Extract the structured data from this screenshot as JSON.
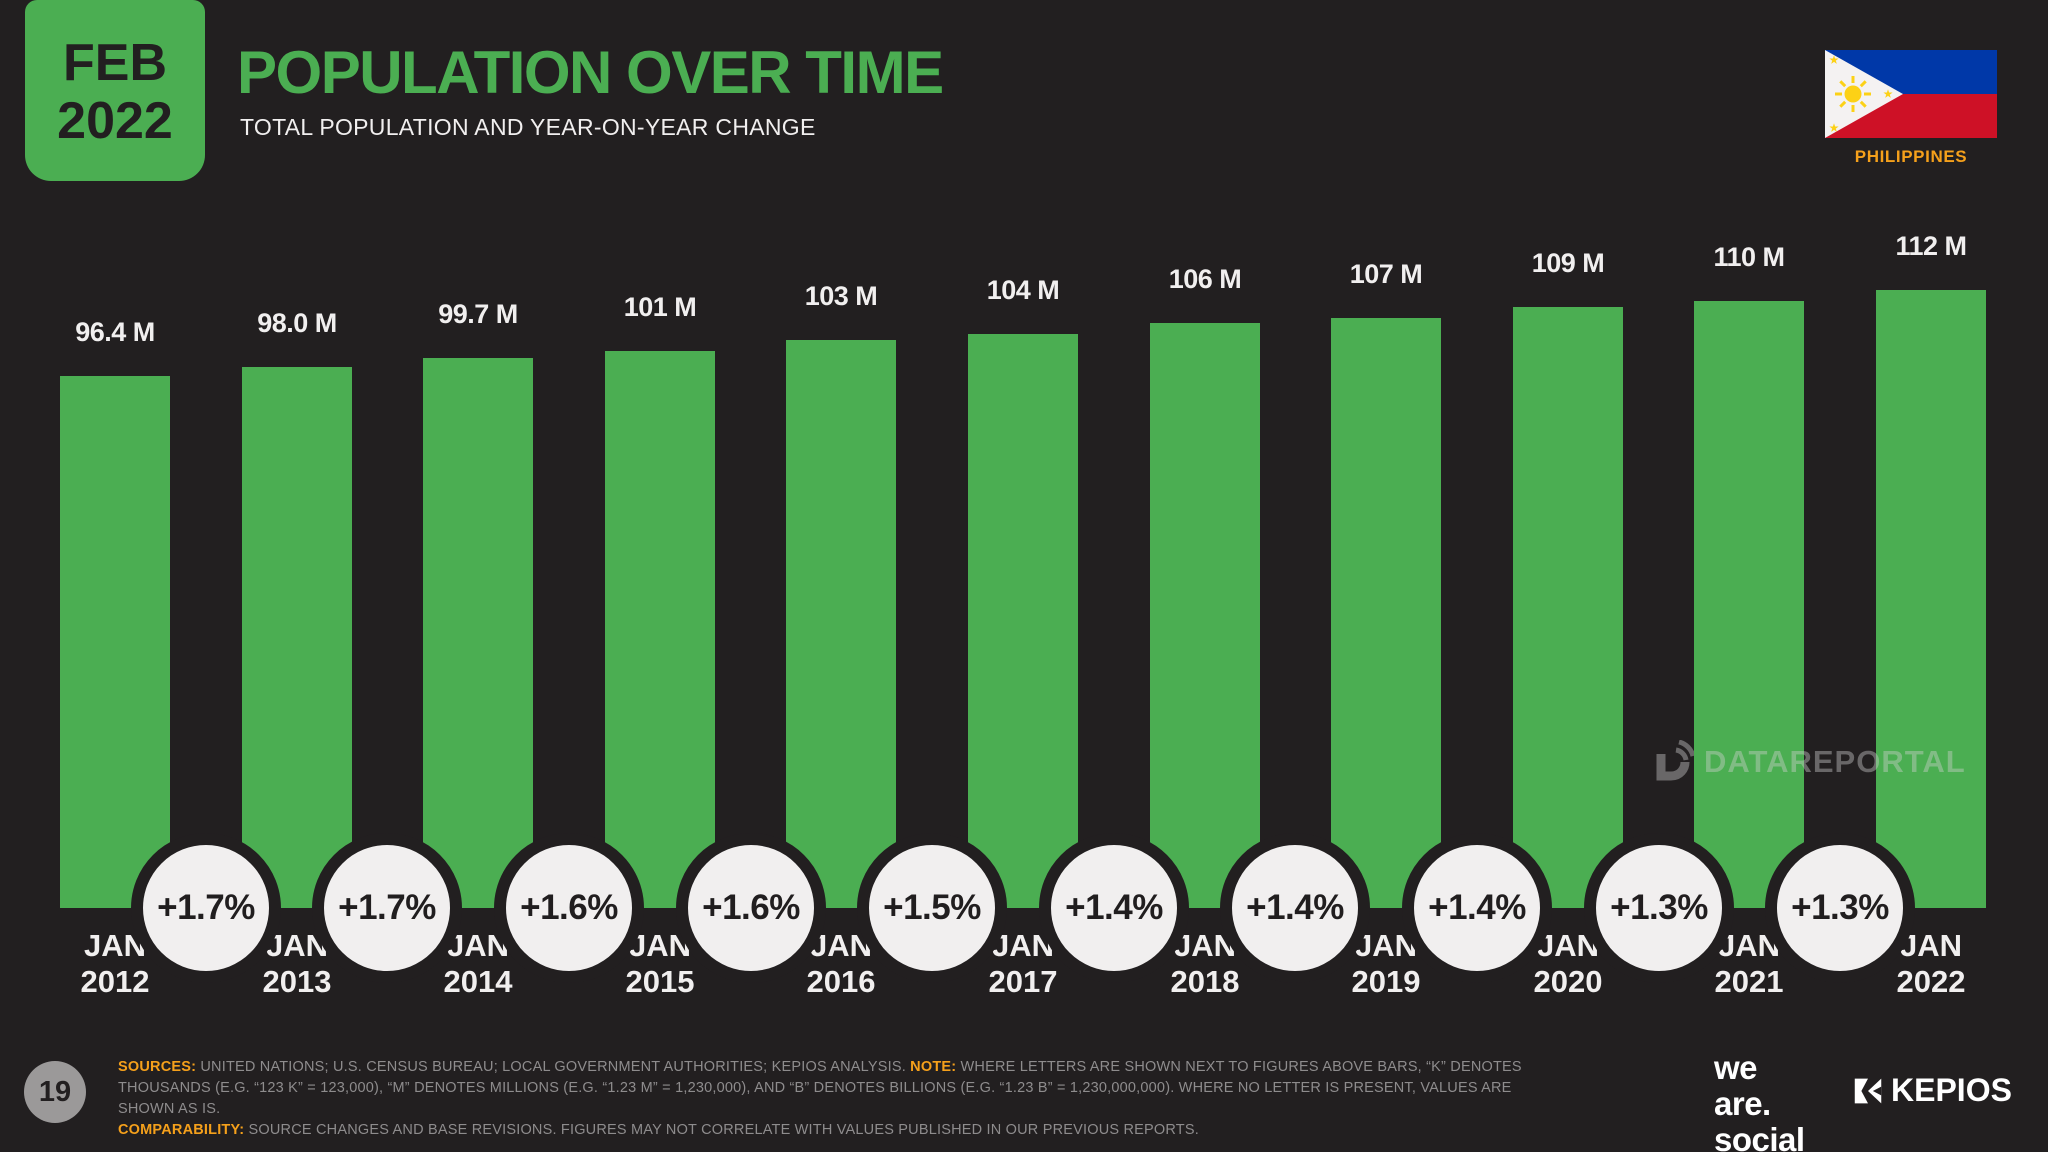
{
  "slide": {
    "date_badge": {
      "month": "FEB",
      "year": "2022"
    },
    "title": "POPULATION OVER TIME",
    "subtitle": "TOTAL POPULATION AND YEAR-ON-YEAR CHANGE",
    "country": "PHILIPPINES"
  },
  "chart_data": {
    "type": "bar",
    "title": "POPULATION OVER TIME",
    "subtitle": "TOTAL POPULATION AND YEAR-ON-YEAR CHANGE",
    "unit": "millions of people",
    "categories": [
      "JAN 2012",
      "JAN 2013",
      "JAN 2014",
      "JAN 2015",
      "JAN 2016",
      "JAN 2017",
      "JAN 2018",
      "JAN 2019",
      "JAN 2020",
      "JAN 2021",
      "JAN 2022"
    ],
    "series": [
      {
        "name": "TOTAL POPULATION",
        "values": [
          96.4,
          98.0,
          99.7,
          101,
          103,
          104,
          106,
          107,
          109,
          110,
          112
        ],
        "value_labels": [
          "96.4 M",
          "98.0 M",
          "99.7 M",
          "101 M",
          "103 M",
          "104 M",
          "106 M",
          "107 M",
          "109 M",
          "110 M",
          "112 M"
        ]
      },
      {
        "name": "YEAR-ON-YEAR CHANGE",
        "values": [
          1.7,
          1.7,
          1.6,
          1.6,
          1.5,
          1.4,
          1.4,
          1.4,
          1.3,
          1.3
        ],
        "value_labels": [
          "+1.7%",
          "+1.7%",
          "+1.6%",
          "+1.6%",
          "+1.5%",
          "+1.4%",
          "+1.4%",
          "+1.4%",
          "+1.3%",
          "+1.3%"
        ]
      }
    ],
    "xlabel": "",
    "ylabel": "",
    "ylim": [
      0,
      112
    ],
    "grid": false,
    "legend_position": "none",
    "bar_color": "#4bae52"
  },
  "watermark": {
    "icon": "dataportal-signal-d-icon",
    "text": "DATAREPORTAL"
  },
  "footer": {
    "page_number": "19",
    "notes": [
      {
        "segments": [
          {
            "label": "SOURCES:",
            "text": " UNITED NATIONS; U.S. CENSUS BUREAU; LOCAL GOVERNMENT AUTHORITIES; KEPIOS ANALYSIS. "
          },
          {
            "label": "NOTE:",
            "text": " WHERE LETTERS ARE SHOWN NEXT TO FIGURES ABOVE BARS, “K” DENOTES THOUSANDS (E.G. “123 K” = 123,000), “M” DENOTES MILLIONS (E.G. “1.23 M” = 1,230,000), AND “B” DENOTES BILLIONS (E.G. “1.23 B” = 1,230,000,000). WHERE NO LETTER IS PRESENT, VALUES ARE SHOWN AS IS."
          }
        ]
      },
      {
        "segments": [
          {
            "label": "COMPARABILITY:",
            "text": " SOURCE CHANGES AND BASE REVISIONS. FIGURES MAY NOT CORRELATE WITH VALUES PUBLISHED IN OUR PREVIOUS REPORTS."
          }
        ]
      }
    ],
    "logos": {
      "we_are_social_lines": [
        "we",
        "are.",
        "social"
      ],
      "kepios": "KEPIOS"
    }
  },
  "colors": {
    "background": "#221f20",
    "bar_green": "#4bae52",
    "accent_green": "#4bae52",
    "off_white": "#f1efef",
    "orange": "#f5a01b",
    "footer_gray": "#8e8c8d",
    "page_circle_bg": "#9b9999"
  }
}
